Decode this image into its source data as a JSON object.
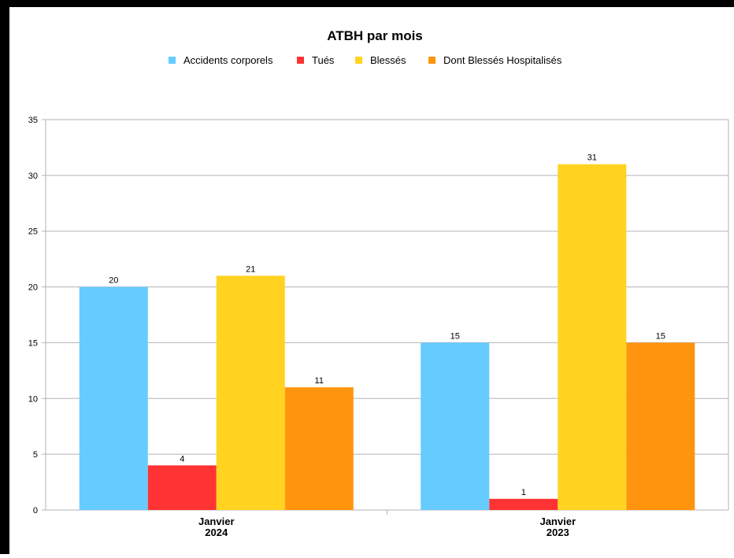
{
  "chart_data": {
    "type": "bar",
    "title": "ATBH par mois",
    "categories": [
      [
        "Janvier",
        "2024"
      ],
      [
        "Janvier",
        "2023"
      ]
    ],
    "series": [
      {
        "name": "Accidents corporels",
        "color": "#66ccff",
        "values": [
          20,
          15
        ]
      },
      {
        "name": "Tués",
        "color": "#ff3333",
        "values": [
          4,
          1
        ]
      },
      {
        "name": "Blessés",
        "color": "#ffd320",
        "values": [
          21,
          31
        ]
      },
      {
        "name": "Dont Blessés Hospitalisés",
        "color": "#ff950e",
        "values": [
          11,
          15
        ]
      }
    ],
    "ylim": [
      0,
      35
    ],
    "yticks": [
      0,
      5,
      10,
      15,
      20,
      25,
      30,
      35
    ],
    "grid": true,
    "legend": "top",
    "xlabel": "",
    "ylabel": ""
  }
}
